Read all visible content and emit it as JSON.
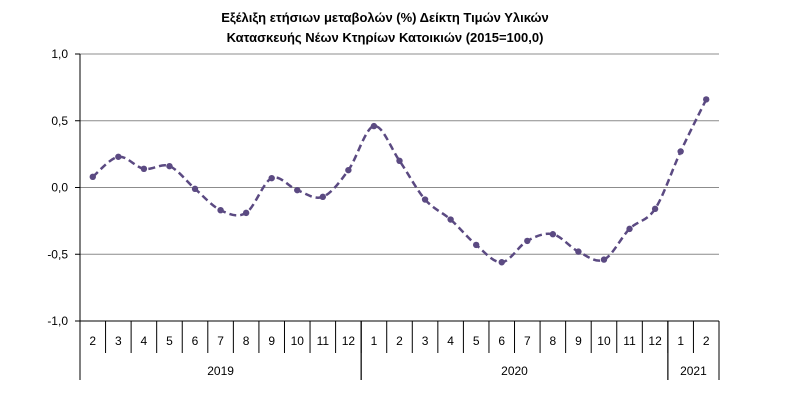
{
  "chart_data": {
    "type": "line",
    "title": "Εξέλιξη ετήσιων μεταβολών (%) Δείκτη Τιμών Υλικών",
    "subtitle": "Κατασκευής Νέων Κτηρίων Κατοικιών (2015=100,0)",
    "categories": [
      "2",
      "3",
      "4",
      "5",
      "6",
      "7",
      "8",
      "9",
      "10",
      "11",
      "12",
      "1",
      "2",
      "3",
      "4",
      "5",
      "6",
      "7",
      "8",
      "9",
      "10",
      "11",
      "12",
      "1",
      "2"
    ],
    "years": [
      {
        "label": "2019",
        "start": 0,
        "end": 10
      },
      {
        "label": "2020",
        "start": 11,
        "end": 22
      },
      {
        "label": "2021",
        "start": 23,
        "end": 24
      }
    ],
    "series": [
      {
        "values": [
          0.08,
          0.23,
          0.14,
          0.16,
          -0.01,
          -0.17,
          -0.19,
          0.07,
          -0.02,
          -0.07,
          0.13,
          0.46,
          0.2,
          -0.09,
          -0.24,
          -0.43,
          -0.56,
          -0.4,
          -0.35,
          -0.48,
          -0.54,
          -0.31,
          -0.16,
          0.27,
          0.66
        ],
        "color": "#5b4a82"
      }
    ],
    "yticks": [
      "1,0",
      "0,5",
      "0,0",
      "-0,5",
      "-1,0"
    ],
    "ytick_values": [
      1.0,
      0.5,
      0.0,
      -0.5,
      -1.0
    ],
    "ylim": [
      -1.0,
      1.0
    ],
    "grid": true,
    "xlabel": "",
    "ylabel": ""
  }
}
